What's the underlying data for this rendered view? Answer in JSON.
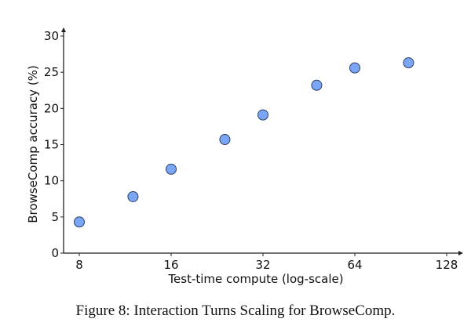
{
  "chart_data": {
    "type": "scatter",
    "title": "",
    "xlabel": "Test-time compute (log-scale)",
    "ylabel": "BrowseComp accuracy (%)",
    "xscale": "log2",
    "xlim": [
      7,
      128
    ],
    "ylim": [
      0,
      30
    ],
    "xticks": [
      8,
      16,
      32,
      64,
      128
    ],
    "yticks": [
      0,
      5,
      10,
      15,
      20,
      25,
      30
    ],
    "grid": false,
    "marker_color": "#7aa6f5",
    "marker_edge": "#2b3f66",
    "x": [
      8,
      12,
      16,
      24,
      32,
      48,
      64,
      96
    ],
    "y": [
      4.3,
      7.8,
      11.6,
      15.7,
      19.1,
      23.2,
      25.6,
      26.3
    ]
  },
  "caption": "Figure 8: Interaction Turns Scaling for BrowseComp."
}
